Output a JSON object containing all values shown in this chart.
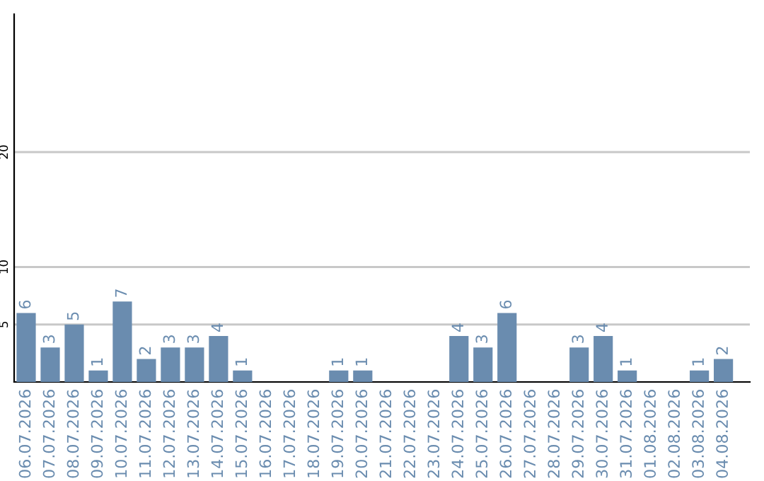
{
  "chart_data": {
    "type": "bar",
    "categories": [
      "06.07.2026",
      "07.07.2026",
      "08.07.2026",
      "09.07.2026",
      "10.07.2026",
      "11.07.2026",
      "12.07.2026",
      "13.07.2026",
      "14.07.2026",
      "15.07.2026",
      "16.07.2026",
      "17.07.2026",
      "18.07.2026",
      "19.07.2026",
      "20.07.2026",
      "21.07.2026",
      "22.07.2026",
      "23.07.2026",
      "24.07.2026",
      "25.07.2026",
      "26.07.2026",
      "27.07.2026",
      "28.07.2026",
      "29.07.2026",
      "30.07.2026",
      "31.07.2026",
      "01.08.2026",
      "02.08.2026",
      "03.08.2026",
      "04.08.2026"
    ],
    "values": [
      6,
      3,
      5,
      1,
      7,
      2,
      3,
      3,
      4,
      1,
      null,
      null,
      null,
      1,
      1,
      null,
      null,
      null,
      4,
      3,
      6,
      null,
      null,
      3,
      4,
      1,
      null,
      null,
      1,
      2
    ],
    "color": "#6a8caf",
    "ylim": [
      0,
      32
    ],
    "yticks": [
      5,
      10,
      20
    ],
    "grid": "y",
    "data_labels": true
  }
}
